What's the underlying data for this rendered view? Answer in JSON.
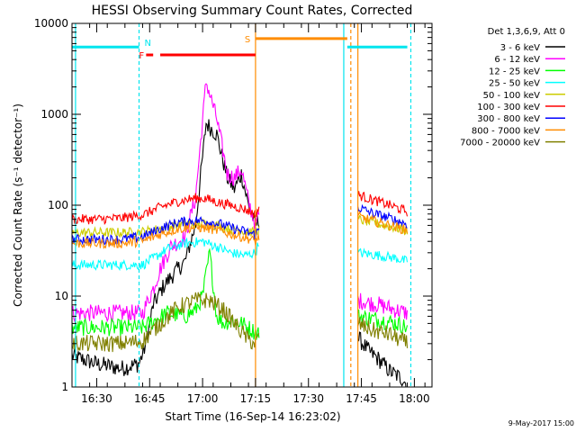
{
  "chart_data": {
    "type": "line",
    "title": "HESSI Observing Summary Count Rates, Corrected",
    "xlabel": "Start Time (16-Sep-14 16:23:02)",
    "ylabel": "Corrected Count Rate (s⁻¹ detector⁻¹)",
    "yscale": "log",
    "ylim": [
      1,
      10000
    ],
    "xlim": [
      "16:23",
      "18:05"
    ],
    "yticks": [
      "1",
      "10",
      "100",
      "1000",
      "10000"
    ],
    "xticks": [
      "16:30",
      "16:45",
      "17:00",
      "17:15",
      "17:30",
      "17:45",
      "18:00"
    ],
    "date_stamp": "9-May-2017 15:00",
    "legend_title": "Det 1,3,6,9, Att 0",
    "legend_position": "right",
    "series": [
      {
        "name": "3 - 6 keV",
        "color": "#000000",
        "points": [
          [
            "16:23",
            2.2
          ],
          [
            "16:30",
            1.8
          ],
          [
            "16:37",
            1.6
          ],
          [
            "16:42",
            1.8
          ],
          [
            "16:44",
            3
          ],
          [
            "16:46",
            8
          ],
          [
            "16:49",
            13
          ],
          [
            "16:52",
            18
          ],
          [
            "16:55",
            24
          ],
          [
            "16:58",
            60
          ],
          [
            "17:01",
            800
          ],
          [
            "17:04",
            600
          ],
          [
            "17:07",
            200
          ],
          [
            "17:09",
            150
          ],
          [
            "17:11",
            220
          ],
          [
            "17:13",
            100
          ],
          [
            "17:15",
            60
          ],
          [
            "17:16",
            70
          ],
          null,
          [
            "17:44",
            3.5
          ],
          [
            "17:47",
            2.5
          ],
          [
            "17:50",
            2
          ],
          [
            "17:53",
            1.5
          ],
          [
            "17:57",
            1.2
          ],
          [
            "17:58",
            1.0
          ]
        ]
      },
      {
        "name": "6 - 12 keV",
        "color": "#ff00ff",
        "points": [
          [
            "16:23",
            6.5
          ],
          [
            "16:30",
            6.5
          ],
          [
            "16:37",
            6.5
          ],
          [
            "16:43",
            6.5
          ],
          [
            "16:44",
            8
          ],
          [
            "16:46",
            12
          ],
          [
            "16:48",
            20
          ],
          [
            "16:51",
            35
          ],
          [
            "16:55",
            45
          ],
          [
            "16:58",
            120
          ],
          [
            "17:01",
            2300
          ],
          [
            "17:04",
            900
          ],
          [
            "17:07",
            220
          ],
          [
            "17:09",
            200
          ],
          [
            "17:11",
            250
          ],
          [
            "17:13",
            110
          ],
          [
            "17:15",
            60
          ],
          [
            "17:16",
            80
          ],
          null,
          [
            "17:44",
            9
          ],
          [
            "17:50",
            8
          ],
          [
            "17:55",
            7
          ],
          [
            "17:58",
            6.5
          ]
        ]
      },
      {
        "name": "12 - 25 keV",
        "color": "#00ff00",
        "points": [
          [
            "16:23",
            4.5
          ],
          [
            "16:30",
            4.5
          ],
          [
            "16:37",
            4.5
          ],
          [
            "16:43",
            4.5
          ],
          [
            "16:45",
            5
          ],
          [
            "16:50",
            6.5
          ],
          [
            "16:55",
            6
          ],
          [
            "16:58",
            7
          ],
          [
            "17:00",
            10
          ],
          [
            "17:02",
            30
          ],
          [
            "17:04",
            6
          ],
          [
            "17:06",
            5
          ],
          [
            "17:08",
            5.5
          ],
          [
            "17:11",
            5
          ],
          [
            "17:13",
            4.5
          ],
          [
            "17:15",
            4
          ],
          [
            "17:16",
            4
          ],
          null,
          [
            "17:44",
            6
          ],
          [
            "17:50",
            5.5
          ],
          [
            "17:55",
            5
          ],
          [
            "17:58",
            4.5
          ]
        ]
      },
      {
        "name": "25 - 50 keV",
        "color": "#00ffff",
        "points": [
          [
            "16:23",
            22
          ],
          [
            "16:30",
            22
          ],
          [
            "16:37",
            22
          ],
          [
            "16:43",
            22
          ],
          [
            "16:46",
            26
          ],
          [
            "16:50",
            33
          ],
          [
            "16:55",
            38
          ],
          [
            "17:00",
            40
          ],
          [
            "17:04",
            35
          ],
          [
            "17:08",
            30
          ],
          [
            "17:12",
            28
          ],
          [
            "17:15",
            30
          ],
          [
            "17:16",
            40
          ],
          null,
          [
            "17:44",
            30
          ],
          [
            "17:50",
            28
          ],
          [
            "17:55",
            26
          ],
          [
            "17:58",
            24
          ]
        ]
      },
      {
        "name": "50 - 100 keV",
        "color": "#cccc00",
        "points": [
          [
            "16:23",
            50
          ],
          [
            "16:30",
            50
          ],
          [
            "16:37",
            50
          ],
          [
            "16:43",
            51
          ],
          [
            "16:46",
            53
          ],
          [
            "16:50",
            58
          ],
          [
            "16:55",
            62
          ],
          [
            "17:00",
            63
          ],
          [
            "17:04",
            60
          ],
          [
            "17:08",
            55
          ],
          [
            "17:12",
            52
          ],
          [
            "17:15",
            50
          ],
          [
            "17:16",
            55
          ],
          null,
          [
            "17:44",
            70
          ],
          [
            "17:50",
            62
          ],
          [
            "17:55",
            56
          ],
          [
            "17:58",
            52
          ]
        ]
      },
      {
        "name": "100 - 300 keV",
        "color": "#ff0000",
        "points": [
          [
            "16:23",
            70
          ],
          [
            "16:30",
            70
          ],
          [
            "16:37",
            72
          ],
          [
            "16:43",
            78
          ],
          [
            "16:48",
            95
          ],
          [
            "16:53",
            110
          ],
          [
            "16:58",
            120
          ],
          [
            "17:01",
            118
          ],
          [
            "17:04",
            108
          ],
          [
            "17:08",
            100
          ],
          [
            "17:12",
            90
          ],
          [
            "17:15",
            80
          ],
          [
            "17:16",
            95
          ],
          null,
          [
            "17:44",
            130
          ],
          [
            "17:48",
            115
          ],
          [
            "17:53",
            100
          ],
          [
            "17:58",
            85
          ]
        ]
      },
      {
        "name": "300 - 800 keV",
        "color": "#0000ff",
        "points": [
          [
            "16:23",
            42
          ],
          [
            "16:30",
            42
          ],
          [
            "16:37",
            42
          ],
          [
            "16:43",
            45
          ],
          [
            "16:48",
            55
          ],
          [
            "16:53",
            65
          ],
          [
            "16:58",
            68
          ],
          [
            "17:01",
            67
          ],
          [
            "17:05",
            62
          ],
          [
            "17:09",
            55
          ],
          [
            "17:13",
            50
          ],
          [
            "17:15",
            47
          ],
          [
            "17:16",
            55
          ],
          null,
          [
            "17:44",
            95
          ],
          [
            "17:48",
            82
          ],
          [
            "17:53",
            72
          ],
          [
            "17:58",
            62
          ]
        ]
      },
      {
        "name": "800 - 7000 keV",
        "color": "#ff8c00",
        "points": [
          [
            "16:23",
            38
          ],
          [
            "16:30",
            38
          ],
          [
            "16:37",
            38
          ],
          [
            "16:43",
            40
          ],
          [
            "16:48",
            48
          ],
          [
            "16:53",
            55
          ],
          [
            "16:58",
            57
          ],
          [
            "17:01",
            56
          ],
          [
            "17:05",
            52
          ],
          [
            "17:09",
            47
          ],
          [
            "17:13",
            43
          ],
          [
            "17:15",
            40
          ],
          [
            "17:16",
            45
          ],
          null,
          [
            "17:44",
            75
          ],
          [
            "17:48",
            68
          ],
          [
            "17:53",
            60
          ],
          [
            "17:58",
            53
          ]
        ]
      },
      {
        "name": "7000 - 20000 keV",
        "color": "#808000",
        "points": [
          [
            "16:23",
            3.0
          ],
          [
            "16:30",
            3.0
          ],
          [
            "16:37",
            3.0
          ],
          [
            "16:43",
            3.2
          ],
          [
            "16:48",
            5
          ],
          [
            "16:53",
            7.5
          ],
          [
            "16:58",
            9
          ],
          [
            "17:02",
            9
          ],
          [
            "17:06",
            7
          ],
          [
            "17:10",
            4.5
          ],
          [
            "17:13",
            3.3
          ],
          [
            "17:15",
            3.0
          ],
          [
            "17:16",
            3.5
          ],
          null,
          [
            "17:44",
            5
          ],
          [
            "17:48",
            4.2
          ],
          [
            "17:53",
            3.8
          ],
          [
            "17:58",
            3.0
          ]
        ]
      }
    ],
    "annotations": {
      "night": {
        "label": "N",
        "color": "#00e5ee",
        "value": 5500,
        "segments": [
          [
            "16:23",
            "16:42"
          ],
          [
            "17:41",
            "17:58"
          ]
        ]
      },
      "saa": {
        "label": "S",
        "color": "#ff8c00",
        "value": 6800,
        "segments": [
          [
            "17:15",
            "17:41"
          ]
        ]
      },
      "flare": {
        "label": "F",
        "color": "#ff0000",
        "value": 4500,
        "segments": [
          [
            "16:44",
            "16:46"
          ],
          [
            "16:48",
            "17:15"
          ]
        ]
      }
    },
    "vertical_markers": [
      {
        "time": "16:24",
        "color": "#00e5ee",
        "style": "solid"
      },
      {
        "time": "16:42",
        "color": "#00e5ee",
        "style": "dashed"
      },
      {
        "time": "17:15",
        "color": "#ff8c00",
        "style": "solid"
      },
      {
        "time": "17:40",
        "color": "#00e5ee",
        "style": "solid"
      },
      {
        "time": "17:42",
        "color": "#ff8c00",
        "style": "dashed"
      },
      {
        "time": "17:44",
        "color": "#ff8c00",
        "style": "solid"
      },
      {
        "time": "17:59",
        "color": "#00e5ee",
        "style": "dashed"
      }
    ]
  }
}
